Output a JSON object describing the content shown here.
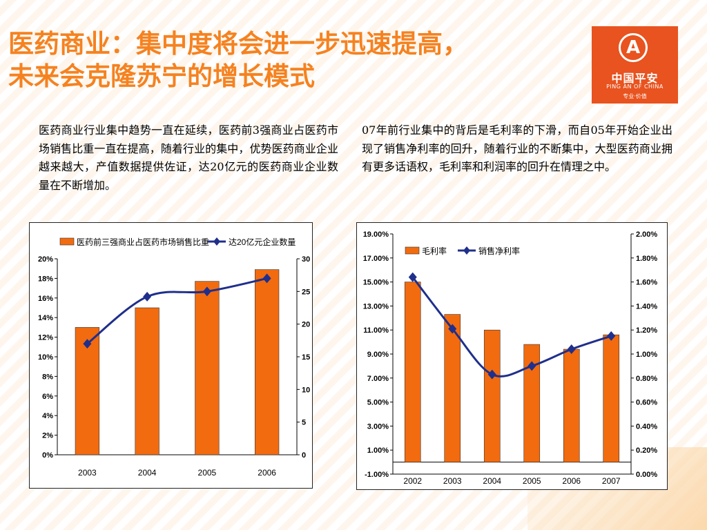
{
  "header": {
    "title_line1": "医药商业：集中度将会进一步迅速提高，",
    "title_line2": "未来会克隆苏宁的增长模式"
  },
  "logo": {
    "cn": "中国平安",
    "en": "PING AN OF CHINA",
    "tagline": "专业·价值"
  },
  "paragraphs": {
    "left": "医药商业行业集中趋势一直在延续，医药前3强商业占医药市场销售比重一直在提高，随着行业的集中，优势医药商业企业越来越大，产值数据提供佐证，达20亿元的医药商业企业数量在不断增加。",
    "right": "07年前行业集中的背后是毛利率的下滑，而自05年开始企业出现了销售净利率的回升，随着行业的不断集中，大型医药商业拥有更多话语权，毛利率和利润率的回升在情理之中。"
  },
  "colors": {
    "bar": "#f26b0f",
    "line": "#1f2f8c",
    "title": "#f58220",
    "logo_bg": "#e8531f"
  },
  "chart_data": [
    {
      "type": "bar",
      "categories": [
        "2003",
        "2004",
        "2005",
        "2006"
      ],
      "series": [
        {
          "name": "医药前三强商业占医药市场销售比重",
          "type": "bar",
          "axis": "left",
          "values": [
            0.13,
            0.15,
            0.177,
            0.189
          ]
        },
        {
          "name": "达20亿元企业数量",
          "type": "line",
          "axis": "right",
          "values": [
            17,
            24.2,
            25,
            27
          ]
        }
      ],
      "ylim": [
        0,
        0.2
      ],
      "y_ticks": [
        "0%",
        "2%",
        "4%",
        "6%",
        "8%",
        "10%",
        "12%",
        "14%",
        "16%",
        "18%",
        "20%"
      ],
      "y2lim": [
        0,
        30
      ],
      "y2_ticks": [
        "0",
        "5",
        "10",
        "15",
        "20",
        "25",
        "30"
      ],
      "legend": "top",
      "grid": false
    },
    {
      "type": "bar",
      "categories": [
        "2002",
        "2003",
        "2004",
        "2005",
        "2006",
        "2007"
      ],
      "series": [
        {
          "name": "毛利率",
          "type": "bar",
          "axis": "left",
          "values": [
            0.15,
            0.123,
            0.11,
            0.098,
            0.094,
            0.106
          ]
        },
        {
          "name": "销售净利率",
          "type": "line",
          "axis": "right",
          "values": [
            0.0164,
            0.0121,
            0.0083,
            0.009,
            0.0104,
            0.0115
          ]
        }
      ],
      "ylim": [
        -0.01,
        0.19
      ],
      "y_ticks": [
        "-1.00%",
        "1.00%",
        "3.00%",
        "5.00%",
        "7.00%",
        "9.00%",
        "11.00%",
        "13.00%",
        "15.00%",
        "17.00%",
        "19.00%"
      ],
      "y2lim": [
        0,
        0.02
      ],
      "y2_ticks": [
        "0.00%",
        "0.20%",
        "0.40%",
        "0.60%",
        "0.80%",
        "1.00%",
        "1.20%",
        "1.40%",
        "1.60%",
        "1.80%",
        "2.00%"
      ],
      "legend": "top-left",
      "grid": false
    }
  ]
}
